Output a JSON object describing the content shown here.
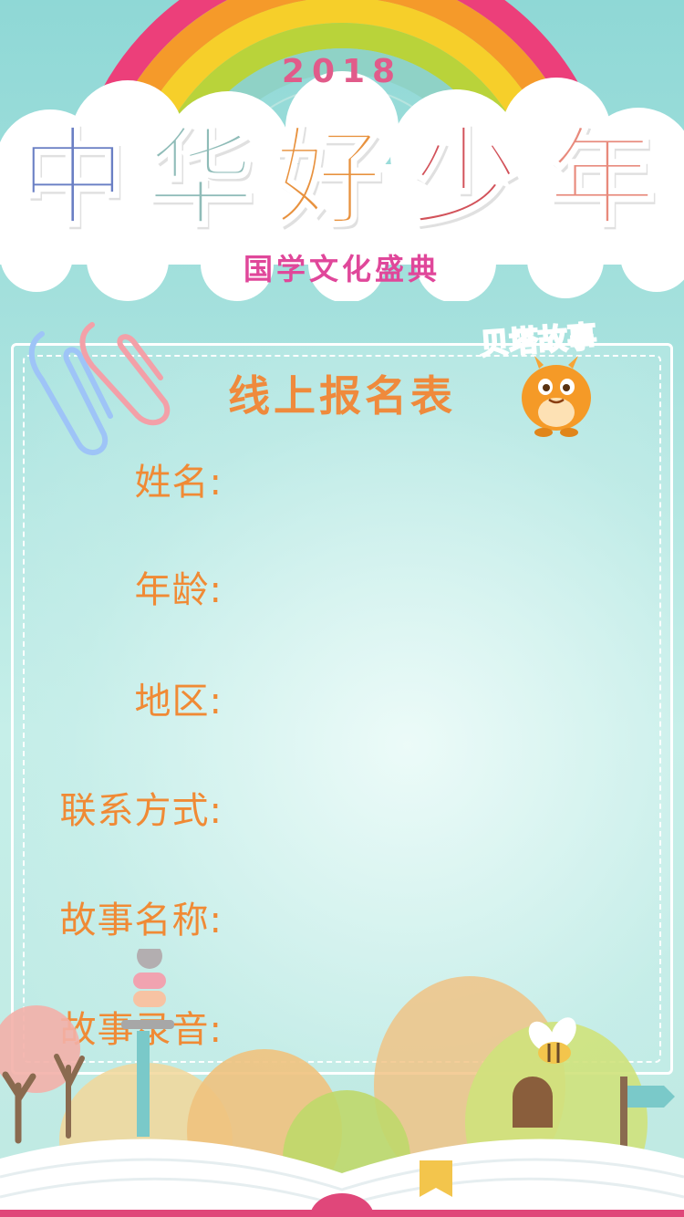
{
  "header": {
    "year": "2018",
    "title_chars": [
      "中",
      "华",
      "好",
      "少",
      "年"
    ],
    "subtitle": "国学文化盛典"
  },
  "brand": {
    "name": "贝塔故事"
  },
  "form": {
    "title": "线上报名表",
    "fields": [
      {
        "label": "姓名:"
      },
      {
        "label": "年龄:"
      },
      {
        "label": "地区:"
      },
      {
        "label": "联系方式:"
      },
      {
        "label": "故事名称:"
      },
      {
        "label": "故事录音:"
      }
    ]
  },
  "colors": {
    "accent_orange": "#f08a35",
    "subtitle_pink": "#e0479a",
    "year_pink": "#e15b8a",
    "char_blue": "#6a7fc4",
    "char_teal": "#8fbcb8",
    "char_orange": "#e8923f",
    "char_red": "#d2525a",
    "char_salmon": "#e88a7c"
  }
}
